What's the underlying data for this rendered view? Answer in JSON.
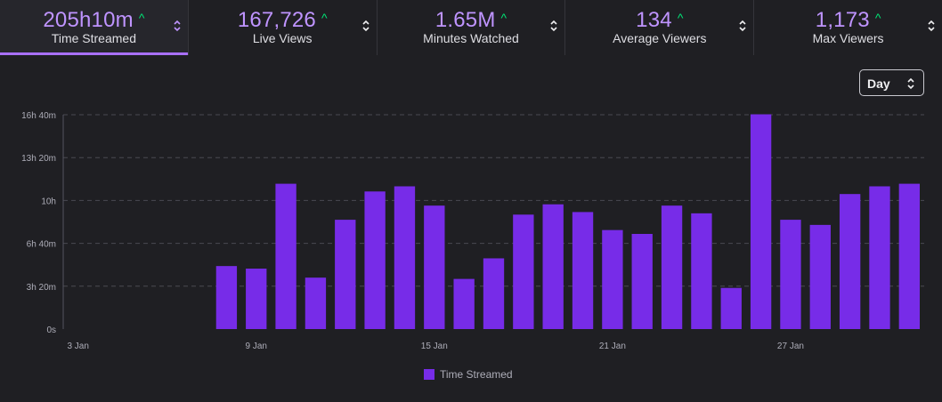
{
  "stats": [
    {
      "value": "205h10m",
      "label": "Time Streamed",
      "active": true
    },
    {
      "value": "167,726",
      "label": "Live Views",
      "active": false
    },
    {
      "value": "1.65M",
      "label": "Minutes Watched",
      "active": false
    },
    {
      "value": "134",
      "label": "Average Viewers",
      "active": false
    },
    {
      "value": "1,173",
      "label": "Max Viewers",
      "active": false
    }
  ],
  "trend_glyph": "^",
  "interval_select": {
    "value": "Day"
  },
  "colors": {
    "accent": "#bf94ff",
    "bar": "#772ce8",
    "up": "#00e676",
    "background": "#1f1f23"
  },
  "chart_data": {
    "type": "bar",
    "title": "",
    "xlabel": "",
    "ylabel": "",
    "x_tick_labels": [
      "3 Jan",
      "9 Jan",
      "15 Jan",
      "21 Jan",
      "27 Jan"
    ],
    "y_tick_labels": [
      "0s",
      "3h 20m",
      "6h 40m",
      "10h",
      "13h 20m",
      "16h 40m"
    ],
    "ylim_hours": [
      0,
      16.667
    ],
    "grid": true,
    "categories": [
      "3 Jan",
      "4 Jan",
      "5 Jan",
      "6 Jan",
      "7 Jan",
      "8 Jan",
      "9 Jan",
      "10 Jan",
      "11 Jan",
      "12 Jan",
      "13 Jan",
      "14 Jan",
      "15 Jan",
      "16 Jan",
      "17 Jan",
      "18 Jan",
      "19 Jan",
      "20 Jan",
      "21 Jan",
      "22 Jan",
      "23 Jan",
      "24 Jan",
      "25 Jan",
      "26 Jan",
      "27 Jan",
      "28 Jan",
      "29 Jan",
      "30 Jan",
      "31 Jan"
    ],
    "series": [
      {
        "name": "Time Streamed",
        "unit": "hours",
        "values": [
          0,
          0,
          0,
          0,
          0,
          4.9,
          4.7,
          11.3,
          4.0,
          8.5,
          10.7,
          11.1,
          9.6,
          3.9,
          5.5,
          8.9,
          9.7,
          9.1,
          7.7,
          7.4,
          9.6,
          9.0,
          3.2,
          16.7,
          8.5,
          8.1,
          10.5,
          11.1,
          11.3
        ]
      }
    ],
    "legend": {
      "label": "Time Streamed",
      "position": "bottom-center"
    }
  }
}
